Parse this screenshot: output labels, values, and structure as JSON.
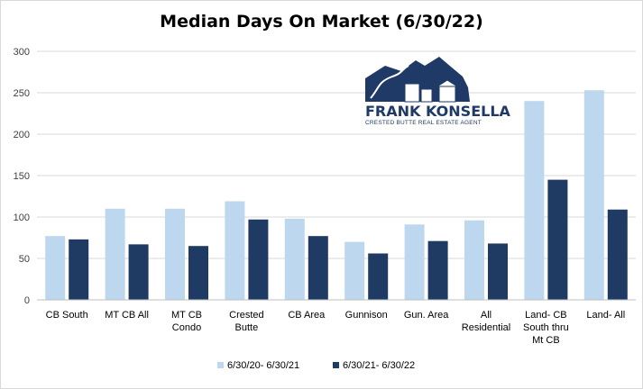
{
  "chart_data": {
    "type": "bar",
    "title": "Median Days On Market (6/30/22)",
    "ylim": [
      0,
      300
    ],
    "yticks": [
      0,
      50,
      100,
      150,
      200,
      250,
      300
    ],
    "grid": true,
    "legend_position": "bottom",
    "categories": [
      [
        "CB South"
      ],
      [
        "MT CB All"
      ],
      [
        "MT CB",
        "Condo"
      ],
      [
        "Crested",
        "Butte"
      ],
      [
        "CB Area"
      ],
      [
        "Gunnison"
      ],
      [
        "Gun. Area"
      ],
      [
        "All",
        "Residential"
      ],
      [
        "Land- CB",
        "South thru",
        "Mt CB"
      ],
      [
        "Land- All"
      ]
    ],
    "series": [
      {
        "name": "6/30/20- 6/30/21",
        "color": "#bdd7ee",
        "values": [
          77,
          110,
          110,
          119,
          98,
          70,
          91,
          96,
          240,
          253
        ]
      },
      {
        "name": "6/30/21- 6/30/22",
        "color": "#1f3b64",
        "values": [
          73,
          67,
          65,
          97,
          77,
          56,
          71,
          68,
          145,
          109
        ]
      }
    ]
  },
  "logo": {
    "name": "FRANK KONSELLA",
    "tagline": "CRESTED BUTTE REAL ESTATE AGENT",
    "color": "#1f3a66"
  }
}
